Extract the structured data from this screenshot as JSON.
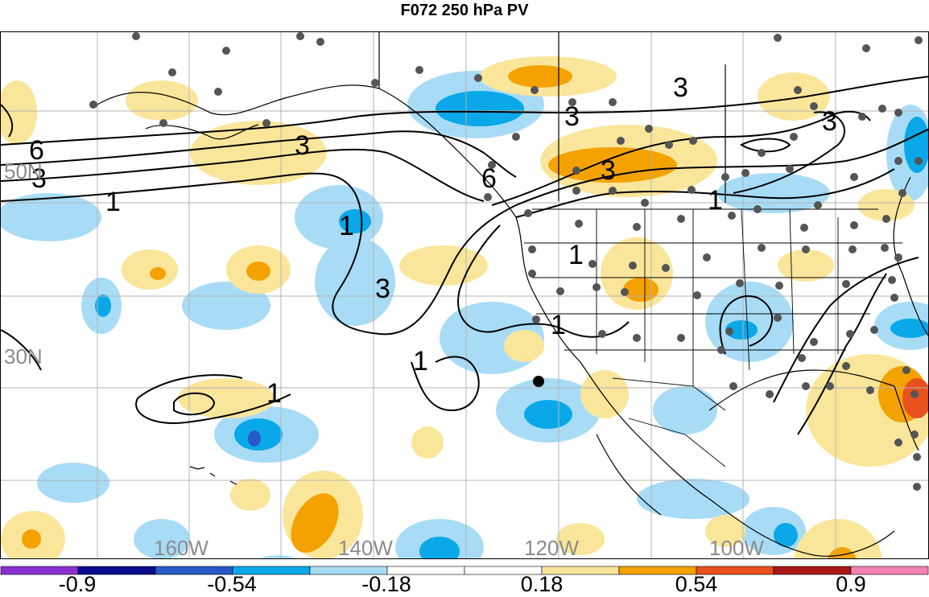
{
  "title": "F072 250 hPa PV",
  "grid_labels": {
    "lat": [
      "50N",
      "30N"
    ],
    "lon": [
      "160W",
      "140W",
      "120W",
      "100W"
    ]
  },
  "contour_labels": [
    "6",
    "3",
    "3",
    "1",
    "3",
    "6",
    "3",
    "1",
    "3",
    "3",
    "3",
    "1",
    "1",
    "1",
    "1",
    "1"
  ],
  "colorbar": {
    "colors": [
      "#8a30d0",
      "#0a0a8c",
      "#2858c8",
      "#0aa8e8",
      "#a8dcf6",
      "#ffffff",
      "#ffffff",
      "#fae69a",
      "#f3a200",
      "#e8501e",
      "#a81818",
      "#f582b4"
    ],
    "tick_labels": [
      "-0.9",
      "-0.54",
      "-0.18",
      "0.18",
      "0.54",
      "0.9"
    ]
  },
  "palette": {
    "neg_light": "#a8dcf6",
    "neg_med": "#0aa8e8",
    "neg_dark": "#2858c8",
    "pos_light": "#fae69a",
    "pos_med": "#f3a200",
    "pos_dark": "#e8501e",
    "station": "#555555"
  }
}
